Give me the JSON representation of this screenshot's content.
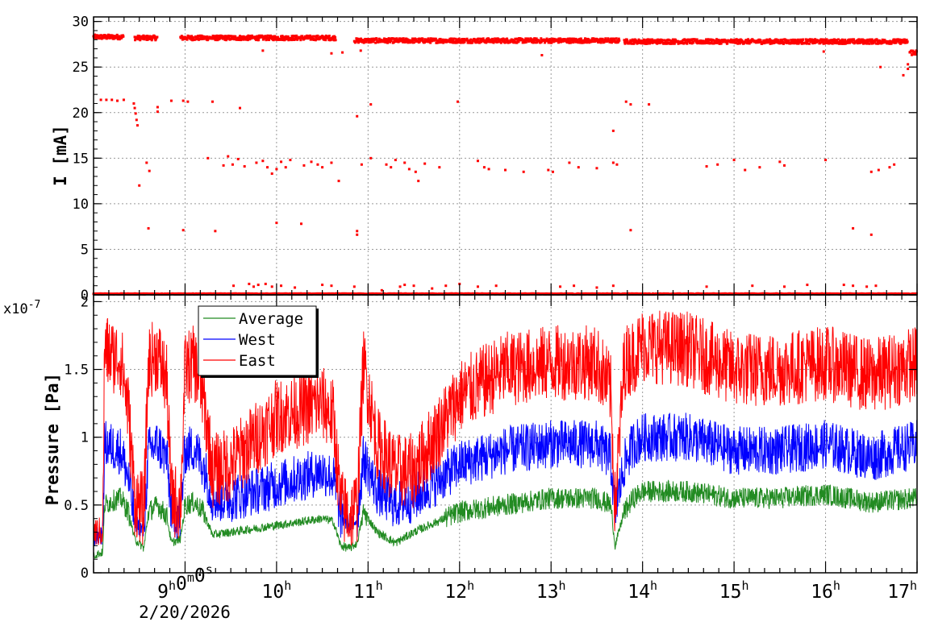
{
  "chart_data": [
    {
      "type": "scatter",
      "title": "",
      "ylabel": "I [mA]",
      "ylim": [
        0,
        30.5
      ],
      "yticks": [
        "0",
        "5",
        "10",
        "15",
        "20",
        "25",
        "30"
      ],
      "x_time_range_hours": [
        8.0,
        17.0
      ],
      "grid": true,
      "series": [
        {
          "color": "#ff0000",
          "bands": [
            {
              "y": 28.3,
              "spread": 0.25,
              "x": [
                8.0,
                8.33
              ]
            },
            {
              "y": 28.2,
              "spread": 0.25,
              "x": [
                8.45,
                8.7
              ]
            },
            {
              "y": 28.2,
              "spread": 0.25,
              "x": [
                8.95,
                10.65
              ]
            },
            {
              "y": 27.9,
              "spread": 0.25,
              "x": [
                10.85,
                13.75
              ]
            },
            {
              "y": 27.8,
              "spread": 0.25,
              "x": [
                13.8,
                16.9
              ]
            },
            {
              "y": 26.6,
              "spread": 0.3,
              "x": [
                16.92,
                17.0
              ]
            },
            {
              "y": 0.1,
              "spread": 0.05,
              "x": [
                8.0,
                17.0
              ]
            }
          ],
          "points": [
            [
              8.08,
              21.4
            ],
            [
              8.14,
              21.4
            ],
            [
              8.2,
              21.4
            ],
            [
              8.26,
              21.3
            ],
            [
              8.33,
              21.4
            ],
            [
              8.44,
              21.0
            ],
            [
              8.45,
              20.5
            ],
            [
              8.46,
              19.9
            ],
            [
              8.47,
              19.2
            ],
            [
              8.48,
              18.6
            ],
            [
              8.5,
              12.0
            ],
            [
              8.58,
              14.5
            ],
            [
              8.61,
              13.6
            ],
            [
              8.6,
              7.3
            ],
            [
              8.7,
              20.6
            ],
            [
              8.7,
              20.1
            ],
            [
              8.85,
              21.3
            ],
            [
              8.98,
              21.3
            ],
            [
              9.03,
              21.2
            ],
            [
              9.3,
              21.2
            ],
            [
              9.6,
              20.5
            ],
            [
              8.98,
              7.1
            ],
            [
              9.33,
              7.0
            ],
            [
              10.0,
              7.9
            ],
            [
              10.27,
              7.8
            ],
            [
              9.25,
              15.0
            ],
            [
              9.42,
              14.2
            ],
            [
              9.47,
              15.2
            ],
            [
              9.52,
              14.3
            ],
            [
              9.58,
              14.9
            ],
            [
              9.65,
              14.1
            ],
            [
              9.78,
              14.5
            ],
            [
              9.85,
              14.7
            ],
            [
              9.9,
              14.0
            ],
            [
              9.95,
              13.3
            ],
            [
              10.0,
              13.8
            ],
            [
              10.05,
              14.6
            ],
            [
              10.1,
              14.0
            ],
            [
              10.15,
              14.8
            ],
            [
              10.3,
              14.2
            ],
            [
              10.38,
              14.6
            ],
            [
              10.45,
              14.3
            ],
            [
              10.5,
              14.0
            ],
            [
              10.6,
              14.5
            ],
            [
              10.68,
              12.5
            ],
            [
              9.85,
              26.8
            ],
            [
              10.6,
              26.5
            ],
            [
              10.72,
              26.6
            ],
            [
              10.92,
              26.8
            ],
            [
              10.88,
              19.6
            ],
            [
              11.03,
              20.9
            ],
            [
              10.88,
              7.0
            ],
            [
              10.88,
              6.6
            ],
            [
              10.93,
              14.3
            ],
            [
              11.03,
              15.0
            ],
            [
              11.2,
              14.3
            ],
            [
              11.25,
              14.0
            ],
            [
              11.3,
              14.8
            ],
            [
              11.4,
              14.5
            ],
            [
              11.45,
              13.8
            ],
            [
              11.52,
              13.5
            ],
            [
              11.55,
              12.5
            ],
            [
              11.62,
              14.4
            ],
            [
              11.78,
              14.0
            ],
            [
              11.98,
              21.2
            ],
            [
              12.2,
              14.7
            ],
            [
              12.27,
              14.0
            ],
            [
              12.32,
              13.8
            ],
            [
              12.5,
              13.7
            ],
            [
              12.7,
              13.5
            ],
            [
              12.9,
              26.3
            ],
            [
              12.97,
              13.7
            ],
            [
              13.02,
              13.5
            ],
            [
              13.2,
              14.5
            ],
            [
              13.3,
              14.0
            ],
            [
              13.5,
              13.9
            ],
            [
              13.68,
              14.5
            ],
            [
              13.72,
              14.3
            ],
            [
              13.68,
              18.0
            ],
            [
              13.82,
              21.2
            ],
            [
              13.87,
              20.9
            ],
            [
              14.07,
              20.9
            ],
            [
              13.87,
              7.1
            ],
            [
              14.7,
              14.1
            ],
            [
              14.82,
              14.3
            ],
            [
              15.0,
              14.8
            ],
            [
              15.12,
              13.7
            ],
            [
              15.28,
              14.0
            ],
            [
              15.5,
              14.6
            ],
            [
              15.55,
              14.2
            ],
            [
              16.0,
              14.8
            ],
            [
              16.3,
              7.3
            ],
            [
              16.5,
              6.6
            ],
            [
              16.5,
              13.5
            ],
            [
              16.58,
              13.7
            ],
            [
              16.7,
              14.0
            ],
            [
              16.75,
              14.3
            ],
            [
              16.6,
              25.0
            ],
            [
              16.85,
              24.1
            ],
            [
              16.9,
              24.8
            ],
            [
              16.9,
              25.3
            ],
            [
              15.98,
              26.7
            ],
            [
              9.53,
              1.0
            ],
            [
              9.7,
              1.2
            ],
            [
              9.75,
              0.9
            ],
            [
              9.8,
              1.1
            ],
            [
              9.88,
              1.2
            ],
            [
              9.95,
              0.9
            ],
            [
              10.05,
              1.0
            ],
            [
              10.2,
              0.8
            ],
            [
              10.5,
              1.1
            ],
            [
              10.6,
              1.0
            ],
            [
              10.85,
              0.9
            ],
            [
              11.15,
              0.5
            ],
            [
              11.35,
              0.9
            ],
            [
              11.4,
              1.1
            ],
            [
              11.5,
              1.0
            ],
            [
              11.7,
              0.7
            ],
            [
              11.85,
              1.0
            ],
            [
              12.0,
              1.2
            ],
            [
              12.2,
              0.9
            ],
            [
              12.4,
              1.0
            ],
            [
              13.1,
              0.9
            ],
            [
              13.25,
              1.0
            ],
            [
              13.5,
              0.8
            ],
            [
              13.68,
              1.0
            ],
            [
              14.7,
              0.9
            ],
            [
              15.2,
              1.0
            ],
            [
              15.55,
              0.9
            ],
            [
              15.8,
              1.1
            ],
            [
              16.2,
              1.1
            ],
            [
              16.3,
              1.0
            ],
            [
              16.45,
              0.9
            ],
            [
              16.55,
              1.0
            ]
          ]
        }
      ]
    },
    {
      "type": "line",
      "title": "",
      "ylabel": "Pressure [Pa]",
      "yscale_label": "x10-7",
      "ylim": [
        0,
        2.05
      ],
      "yticks": [
        "0",
        "0.5",
        "1",
        "1.5",
        "2"
      ],
      "x_time_range_hours": [
        8.0,
        17.0
      ],
      "grid": true,
      "legend_position": "top-left",
      "series": [
        {
          "name": "Average",
          "color": "#228b22",
          "noise": 0.08,
          "x": [
            8.0,
            8.1,
            8.12,
            8.2,
            8.3,
            8.38,
            8.45,
            8.55,
            8.6,
            8.7,
            8.8,
            8.85,
            8.95,
            9.0,
            9.1,
            9.2,
            9.3,
            9.5,
            10.0,
            10.5,
            10.62,
            10.7,
            10.8,
            10.88,
            10.95,
            11.1,
            11.3,
            11.5,
            12.0,
            12.5,
            13.0,
            13.5,
            13.65,
            13.7,
            13.8,
            13.9,
            14.0,
            14.5,
            15.0,
            15.5,
            16.0,
            16.5,
            17.0
          ],
          "y": [
            0.13,
            0.15,
            0.5,
            0.53,
            0.55,
            0.45,
            0.25,
            0.18,
            0.45,
            0.5,
            0.42,
            0.22,
            0.25,
            0.5,
            0.52,
            0.45,
            0.28,
            0.3,
            0.35,
            0.4,
            0.38,
            0.2,
            0.18,
            0.22,
            0.45,
            0.3,
            0.22,
            0.3,
            0.45,
            0.5,
            0.55,
            0.55,
            0.5,
            0.2,
            0.45,
            0.55,
            0.6,
            0.6,
            0.55,
            0.55,
            0.58,
            0.52,
            0.55
          ]
        },
        {
          "name": "West",
          "color": "#0000ff",
          "noise": 0.18,
          "x": [
            8.0,
            8.1,
            8.12,
            8.2,
            8.3,
            8.38,
            8.45,
            8.55,
            8.6,
            8.7,
            8.8,
            8.85,
            8.95,
            9.0,
            9.1,
            9.2,
            9.3,
            9.5,
            10.0,
            10.5,
            10.62,
            10.7,
            10.8,
            10.88,
            10.95,
            11.1,
            11.3,
            11.5,
            12.0,
            12.5,
            13.0,
            13.5,
            13.65,
            13.7,
            13.8,
            13.9,
            14.0,
            14.5,
            15.0,
            15.5,
            16.0,
            16.5,
            17.0
          ],
          "y": [
            0.26,
            0.28,
            0.95,
            0.93,
            0.9,
            0.7,
            0.38,
            0.3,
            0.9,
            0.95,
            0.85,
            0.45,
            0.4,
            0.9,
            0.92,
            0.8,
            0.55,
            0.55,
            0.65,
            0.75,
            0.7,
            0.42,
            0.35,
            0.4,
            0.85,
            0.6,
            0.5,
            0.55,
            0.8,
            0.9,
            0.95,
            0.95,
            0.85,
            0.45,
            0.8,
            0.95,
            1.0,
            1.0,
            0.9,
            0.9,
            0.95,
            0.85,
            0.95
          ]
        },
        {
          "name": "East",
          "color": "#ff0000",
          "noise": 0.28,
          "x": [
            8.0,
            8.1,
            8.12,
            8.2,
            8.3,
            8.38,
            8.45,
            8.55,
            8.6,
            8.7,
            8.8,
            8.85,
            8.95,
            9.0,
            9.1,
            9.2,
            9.3,
            9.5,
            10.0,
            10.5,
            10.62,
            10.7,
            10.8,
            10.88,
            10.95,
            11.1,
            11.3,
            11.5,
            12.0,
            12.5,
            13.0,
            13.5,
            13.65,
            13.7,
            13.8,
            13.9,
            14.0,
            14.5,
            15.0,
            15.5,
            16.0,
            16.5,
            17.0
          ],
          "y": [
            0.3,
            0.3,
            1.65,
            1.6,
            1.58,
            1.2,
            0.55,
            0.45,
            1.55,
            1.62,
            1.4,
            0.55,
            0.5,
            1.5,
            1.55,
            1.3,
            0.75,
            0.8,
            1.15,
            1.25,
            1.15,
            0.5,
            0.42,
            0.5,
            1.55,
            0.95,
            0.75,
            0.75,
            1.3,
            1.5,
            1.55,
            1.55,
            1.35,
            0.48,
            1.55,
            1.6,
            1.68,
            1.65,
            1.5,
            1.5,
            1.55,
            1.45,
            1.55
          ]
        }
      ]
    }
  ],
  "x_axis": {
    "tick_labels": [
      {
        "hour": 9,
        "text": "9h0m0s"
      },
      {
        "hour": 10,
        "text": "10h"
      },
      {
        "hour": 11,
        "text": "11h"
      },
      {
        "hour": 12,
        "text": "12h"
      },
      {
        "hour": 13,
        "text": "13h"
      },
      {
        "hour": 14,
        "text": "14h"
      },
      {
        "hour": 15,
        "text": "15h"
      },
      {
        "hour": 16,
        "text": "16h"
      },
      {
        "hour": 17,
        "text": "17h"
      }
    ],
    "date": "2/20/2026"
  }
}
